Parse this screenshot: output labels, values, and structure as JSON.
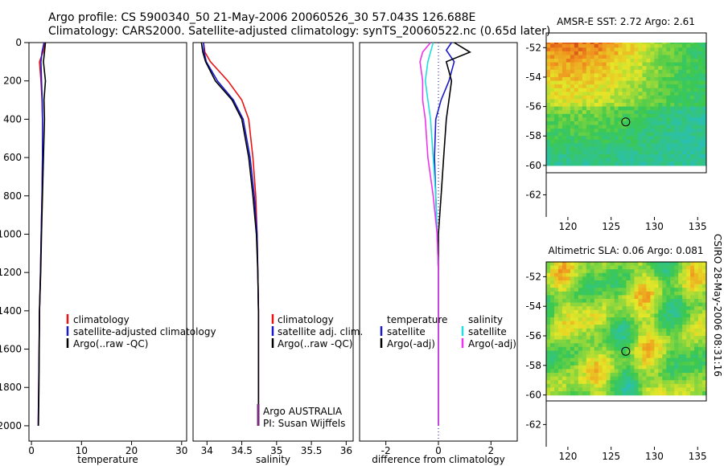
{
  "header": {
    "title_line1": "Argo profile: CS 5900340_50 21-May-2006 20060526_30 57.043S 126.688E",
    "title_line2": "Climatology: CARS2000. Satellite-adjusted climatology: synTS_20060522.nc (0.65d later)"
  },
  "footer": {
    "timestamp": "CSIRO 28-May-2006 08:31:16",
    "institution": "Argo AUSTRALIA",
    "pi": "PI: Susan Wijffels"
  },
  "colors": {
    "climatology": "#ee1111",
    "satellite": "#1a1acc",
    "argo": "#000000",
    "sal_satellite": "#22dddd",
    "sal_argo": "#ee33ee"
  },
  "chart_data": [
    {
      "type": "line",
      "name": "temperature",
      "xlabel": "temperature",
      "ylabel": "",
      "xlim": [
        -0.5,
        31
      ],
      "ylim": [
        2080,
        0
      ],
      "xticks": [
        "0",
        "10",
        "20",
        "30"
      ],
      "yticks": [
        "0",
        "200",
        "400",
        "600",
        "800",
        "1000",
        "1200",
        "1400",
        "1600",
        "1800",
        "2000"
      ],
      "legend": [
        "climatology",
        "satellite-adjusted climatology",
        "Argo(..raw -QC)"
      ],
      "series": [
        {
          "name": "climatology",
          "x": [
            2.7,
            2.3,
            1.6,
            1.9,
            2.1,
            2.2,
            2.2,
            2.1,
            1.95,
            1.8,
            1.6,
            1.45,
            1.35
          ],
          "y": [
            0,
            50,
            100,
            200,
            300,
            400,
            600,
            800,
            1000,
            1200,
            1400,
            1800,
            2000
          ]
        },
        {
          "name": "satellite",
          "x": [
            2.5,
            2.1,
            1.9,
            2.0,
            2.15,
            2.2,
            2.2,
            2.1,
            1.95,
            1.8,
            1.6,
            1.45,
            1.35
          ],
          "y": [
            0,
            50,
            100,
            200,
            300,
            400,
            600,
            800,
            1000,
            1200,
            1400,
            1800,
            2000
          ]
        },
        {
          "name": "Argo",
          "x": [
            2.8,
            2.6,
            2.4,
            2.8,
            2.5,
            2.6,
            2.4,
            2.2,
            2.0,
            1.85,
            1.6,
            1.5,
            1.4
          ],
          "y": [
            0,
            50,
            100,
            200,
            300,
            400,
            600,
            800,
            1000,
            1200,
            1400,
            1800,
            2000
          ]
        }
      ]
    },
    {
      "type": "line",
      "name": "salinity",
      "xlabel": "salinity",
      "ylabel": "",
      "xlim": [
        33.8,
        36.1
      ],
      "ylim": [
        2080,
        0
      ],
      "xticks": [
        "34",
        "34.5",
        "35",
        "35.5",
        "36"
      ],
      "legend": [
        "climatology",
        "satellite adj. clim.",
        "Argo(..raw -QC)"
      ],
      "series": [
        {
          "name": "climatology",
          "x": [
            33.95,
            33.97,
            34.05,
            34.3,
            34.5,
            34.6,
            34.66,
            34.7,
            34.72,
            34.73,
            34.74,
            34.74,
            34.74
          ],
          "y": [
            0,
            50,
            100,
            200,
            300,
            400,
            600,
            800,
            1000,
            1200,
            1400,
            1800,
            2000
          ]
        },
        {
          "name": "satellite",
          "x": [
            33.95,
            33.96,
            33.99,
            34.15,
            34.38,
            34.52,
            34.62,
            34.68,
            34.72,
            34.73,
            34.74,
            34.74,
            34.74
          ],
          "y": [
            0,
            50,
            100,
            200,
            300,
            400,
            600,
            800,
            1000,
            1200,
            1400,
            1800,
            2000
          ]
        },
        {
          "name": "Argo",
          "x": [
            33.92,
            33.94,
            33.98,
            34.12,
            34.36,
            34.5,
            34.6,
            34.66,
            34.71,
            34.73,
            34.74,
            34.74,
            34.74
          ],
          "y": [
            0,
            50,
            100,
            200,
            300,
            400,
            600,
            800,
            1000,
            1200,
            1400,
            1800,
            2000
          ]
        }
      ]
    },
    {
      "type": "line",
      "name": "difference from climatology",
      "xlabel": "difference from climatology",
      "ylabel": "",
      "xlim": [
        -3,
        3
      ],
      "ylim": [
        2080,
        0
      ],
      "xticks": [
        "-2",
        "0",
        "2"
      ],
      "legend_temperature": [
        "temperature",
        "satellite",
        "Argo(-adj)"
      ],
      "legend_salinity": [
        "salinity",
        "satellite",
        "Argo(-adj)"
      ],
      "series": [
        {
          "name": "temperature satellite",
          "x": [
            0.5,
            0.3,
            0.6,
            0.4,
            0.1,
            -0.1,
            -0.15,
            -0.1,
            -0.05,
            0.0,
            0.0,
            0.0
          ],
          "y": [
            0,
            40,
            100,
            200,
            300,
            400,
            600,
            800,
            1000,
            1200,
            1400,
            2000
          ]
        },
        {
          "name": "temperature Argo",
          "x": [
            0.6,
            1.2,
            0.3,
            0.5,
            0.4,
            0.3,
            0.2,
            0.1,
            0.0,
            0.0,
            0.0,
            0.0
          ],
          "y": [
            0,
            50,
            100,
            200,
            300,
            400,
            600,
            800,
            1000,
            1200,
            1400,
            2000
          ]
        },
        {
          "name": "salinity satellite",
          "x": [
            -0.2,
            -0.3,
            -0.4,
            -0.5,
            -0.4,
            -0.3,
            -0.2,
            -0.1,
            -0.05,
            0.0,
            0.0,
            0.0
          ],
          "y": [
            0,
            50,
            100,
            200,
            300,
            400,
            600,
            800,
            1000,
            1200,
            1400,
            2000
          ]
        },
        {
          "name": "salinity Argo",
          "x": [
            -0.3,
            -0.6,
            -0.7,
            -0.6,
            -0.6,
            -0.5,
            -0.4,
            -0.2,
            -0.05,
            0.0,
            0.0,
            0.0
          ],
          "y": [
            0,
            50,
            100,
            200,
            300,
            400,
            600,
            800,
            1000,
            1200,
            1400,
            2000
          ]
        }
      ]
    },
    {
      "type": "heatmap",
      "name": "AMSR-E SST",
      "title": "AMSR-E SST: 2.72 Argo: 2.61",
      "xlim": [
        117.5,
        136
      ],
      "ylim": [
        -63.5,
        -51
      ],
      "data_ylim": [
        -60,
        -51
      ],
      "xticks": [
        "120",
        "125",
        "130",
        "135"
      ],
      "yticks": [
        "-52",
        "-54",
        "-56",
        "-58",
        "-60",
        "-62"
      ],
      "marker": {
        "lon": 126.688,
        "lat": -57.043
      }
    },
    {
      "type": "heatmap",
      "name": "Altimetric SLA",
      "title": "Altimetric SLA: 0.06 Argo: 0.081",
      "xlim": [
        117.5,
        136
      ],
      "ylim": [
        -63.5,
        -51
      ],
      "data_ylim": [
        -60,
        -51
      ],
      "xticks": [
        "120",
        "125",
        "130",
        "135"
      ],
      "yticks": [
        "-52",
        "-54",
        "-56",
        "-58",
        "-60",
        "-62"
      ],
      "marker": {
        "lon": 126.688,
        "lat": -57.043
      }
    }
  ]
}
